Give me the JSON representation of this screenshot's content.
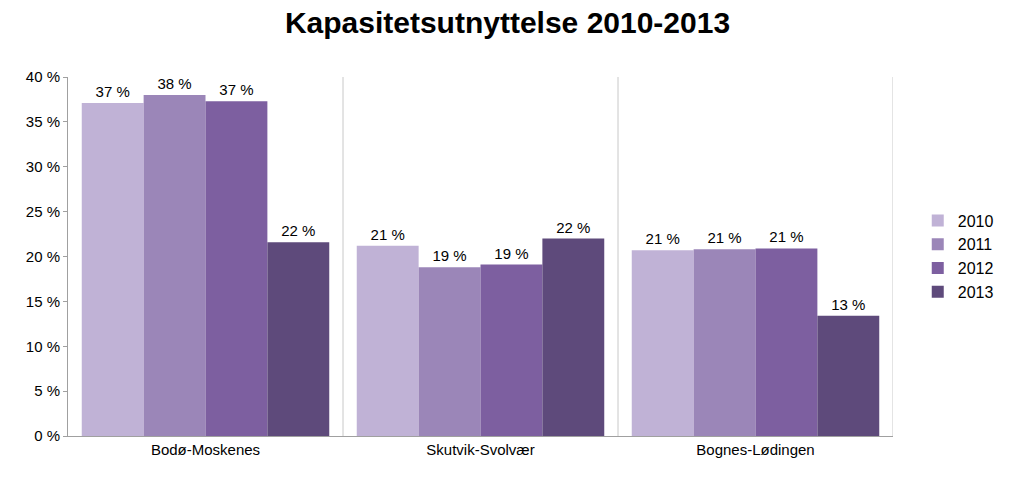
{
  "chart_data": {
    "type": "bar",
    "title": "Kapasitetsutnyttelse 2010-2013",
    "categories": [
      "Bodø-Moskenes",
      "Skutvik-Svolvær",
      "Bognes-Lødingen"
    ],
    "series": [
      {
        "name": "2010",
        "color": "#c0b2d6",
        "values": [
          37.1,
          21.2,
          20.7
        ],
        "value_labels": [
          "37 %",
          "21 %",
          "21 %"
        ]
      },
      {
        "name": "2011",
        "color": "#9b86b8",
        "values": [
          38.0,
          18.8,
          20.8
        ],
        "value_labels": [
          "38 %",
          "19 %",
          "21 %"
        ]
      },
      {
        "name": "2012",
        "color": "#7d5fa0",
        "values": [
          37.3,
          19.1,
          20.9
        ],
        "value_labels": [
          "37 %",
          "19 %",
          "21 %"
        ]
      },
      {
        "name": "2013",
        "color": "#5e4a7b",
        "values": [
          21.6,
          22.0,
          13.4
        ],
        "value_labels": [
          "22 %",
          "22 %",
          "13 %"
        ]
      }
    ],
    "ylim": [
      0,
      40
    ],
    "yticks": [
      {
        "value": 0,
        "label": "0 %"
      },
      {
        "value": 5,
        "label": "5 %"
      },
      {
        "value": 10,
        "label": "10 %"
      },
      {
        "value": 15,
        "label": "15 %"
      },
      {
        "value": 20,
        "label": "20 %"
      },
      {
        "value": 25,
        "label": "25 %"
      },
      {
        "value": 30,
        "label": "30 %"
      },
      {
        "value": 35,
        "label": "35 %"
      },
      {
        "value": 40,
        "label": "40 %"
      }
    ],
    "grid": true,
    "legend": "right",
    "data_labels": true
  }
}
